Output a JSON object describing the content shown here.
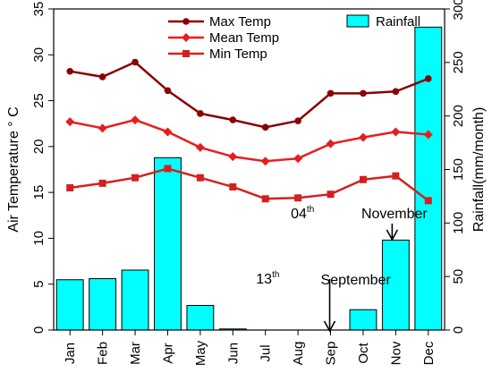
{
  "chart_data": {
    "type": "bar+line",
    "categories": [
      "Jan",
      "Feb",
      "Mar",
      "Apr",
      "May",
      "Jun",
      "Jul",
      "Aug",
      "Sep",
      "Oct",
      "Nov",
      "Dec"
    ],
    "bars": {
      "name": "Rainfall",
      "color": "#00ffff",
      "axis": "right",
      "values": [
        47,
        48,
        56,
        161,
        23,
        1,
        0,
        0,
        0,
        19,
        84,
        283
      ]
    },
    "series": [
      {
        "name": "Max Temp",
        "color": "#8b0000",
        "marker": "circle",
        "axis": "left",
        "values": [
          28.2,
          27.6,
          29.2,
          26.1,
          23.6,
          22.9,
          22.1,
          22.8,
          25.8,
          25.8,
          26.0,
          27.4
        ]
      },
      {
        "name": "Mean Temp",
        "color": "#e61e1e",
        "marker": "diamond",
        "axis": "left",
        "values": [
          22.7,
          22.0,
          22.9,
          21.6,
          19.9,
          18.9,
          18.4,
          18.7,
          20.3,
          21.0,
          21.6,
          21.3
        ]
      },
      {
        "name": "Min Temp",
        "color": "#d42020",
        "marker": "square",
        "axis": "left",
        "values": [
          15.5,
          16.0,
          16.6,
          17.6,
          16.6,
          15.6,
          14.3,
          14.4,
          14.8,
          16.4,
          16.8,
          14.1
        ]
      }
    ],
    "ylabel": "Air Temperature ° C",
    "ylabel_right": "Rainfall(mm/month)",
    "ylim": [
      0,
      35
    ],
    "ylim_right": [
      0,
      300
    ],
    "yticks": [
      0,
      5,
      10,
      15,
      20,
      25,
      30,
      35
    ],
    "yticks_right": [
      0,
      50,
      100,
      150,
      200,
      250,
      300
    ],
    "legend_position": "top",
    "annotations": [
      {
        "text": "04",
        "sup": "th",
        "month": "Sep"
      },
      {
        "text": "November",
        "month": "Nov",
        "arrow": true
      },
      {
        "text": "13",
        "sup": "th",
        "month": "Jul"
      },
      {
        "text": "September",
        "month": "Sep",
        "arrow": true
      }
    ]
  }
}
